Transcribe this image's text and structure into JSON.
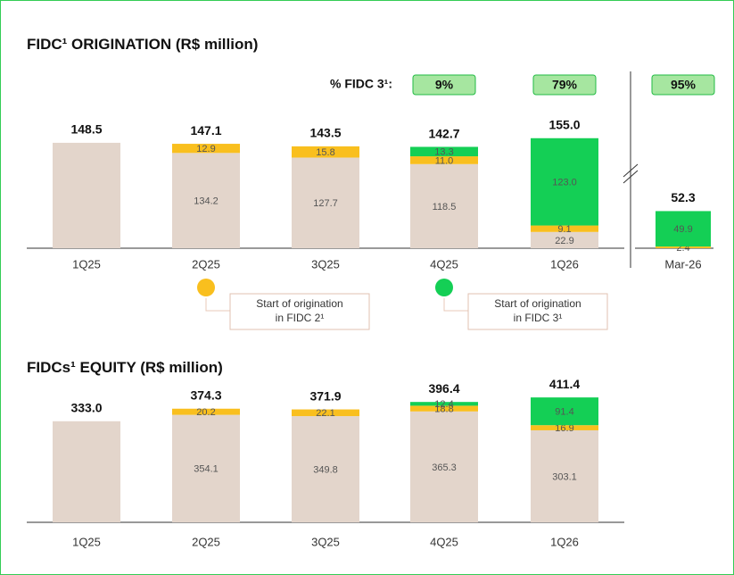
{
  "chart_data": [
    {
      "type": "bar",
      "stacked": true,
      "title": "FIDC¹ ORIGINATION  (R$ million)",
      "categories": [
        "1Q25",
        "2Q25",
        "3Q25",
        "4Q25",
        "1Q26",
        "Mar-26"
      ],
      "series": [
        {
          "color": "#e3d5cb",
          "values": [
            148.5,
            134.2,
            127.7,
            118.5,
            22.9,
            null
          ],
          "value_labels": [
            null,
            "134.2",
            "127.7",
            "118.5",
            "22.9",
            null
          ]
        },
        {
          "color": "#f9bf1e",
          "values": [
            null,
            12.9,
            15.8,
            11.0,
            9.1,
            2.4
          ],
          "value_labels": [
            null,
            "12.9",
            "15.8",
            "11.0",
            "9.1",
            "2.4"
          ]
        },
        {
          "color": "#14cf55",
          "values": [
            null,
            null,
            null,
            13.3,
            123.0,
            49.9
          ],
          "value_labels": [
            null,
            null,
            null,
            "13.3",
            "123.0",
            "49.9"
          ]
        }
      ],
      "totals": [
        148.5,
        147.1,
        143.5,
        142.7,
        155.0,
        52.3
      ],
      "total_labels": [
        "148.5",
        "147.1",
        "143.5",
        "142.7",
        "155.0",
        "52.3"
      ],
      "pct_fidc3": {
        "label": "% FIDC 3¹:",
        "values": [
          null,
          null,
          null,
          9,
          79,
          95
        ],
        "value_labels": [
          null,
          null,
          null,
          "9%",
          "79%",
          "95%"
        ]
      },
      "annotations": [
        {
          "category": "2Q25",
          "color": "#f9bf1e",
          "lines": [
            "Start of origination",
            "in FIDC 2¹"
          ]
        },
        {
          "category": "4Q25",
          "color": "#14cf55",
          "lines": [
            "Start of origination",
            "in FIDC 3¹"
          ]
        }
      ]
    },
    {
      "type": "bar",
      "stacked": true,
      "title": "FIDCs¹ EQUITY  (R$ million)",
      "categories": [
        "1Q25",
        "2Q25",
        "3Q25",
        "4Q25",
        "1Q26"
      ],
      "series": [
        {
          "color": "#e3d5cb",
          "values": [
            333.0,
            354.1,
            349.8,
            365.3,
            303.1
          ],
          "value_labels": [
            null,
            "354.1",
            "349.8",
            "365.3",
            "303.1"
          ]
        },
        {
          "color": "#f9bf1e",
          "values": [
            null,
            20.2,
            22.1,
            18.8,
            16.9
          ],
          "value_labels": [
            null,
            "20.2",
            "22.1",
            "18.8",
            "16.9"
          ]
        },
        {
          "color": "#14cf55",
          "values": [
            null,
            null,
            null,
            12.4,
            91.4
          ],
          "value_labels": [
            null,
            null,
            null,
            "12.4",
            "91.4"
          ]
        }
      ],
      "totals": [
        333.0,
        374.3,
        371.9,
        396.4,
        411.4
      ],
      "total_labels": [
        "333.0",
        "374.3",
        "371.9",
        "396.4",
        "411.4"
      ]
    }
  ]
}
